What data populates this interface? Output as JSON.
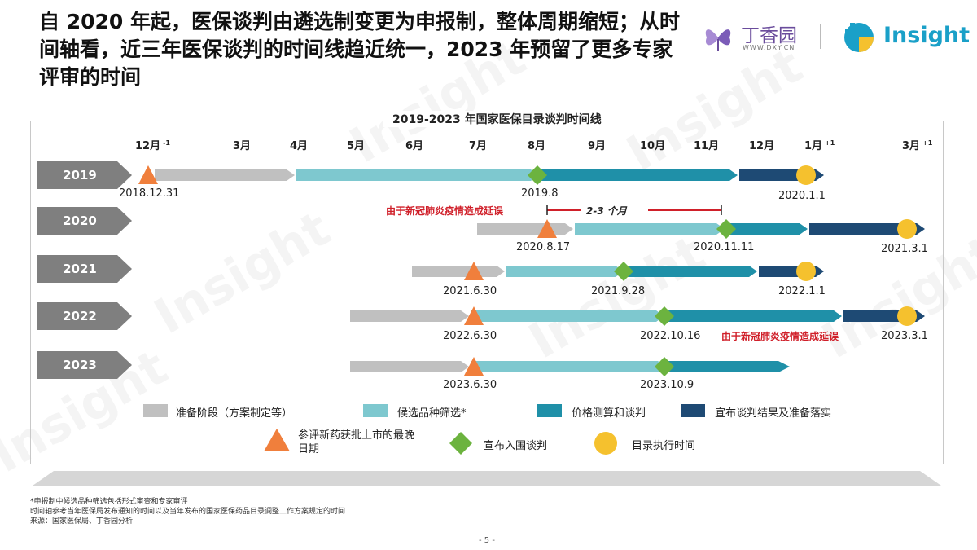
{
  "title": "自 2020 年起，医保谈判由遴选制变更为申报制，整体周期缩短；从时间轴看，近三年医保谈判的时间线趋近统一，2023 年预留了更多专家评审的时间",
  "logos": {
    "dxy_text": "丁香园",
    "dxy_url": "WWW.DXY.CN",
    "insight_text": "Insight"
  },
  "watermark": "Insight",
  "chart_title": "2019-2023 年国家医保目录谈判时间线",
  "months": [
    {
      "label": "12月",
      "sup": "-1"
    },
    {
      "label": "3月",
      "sup": ""
    },
    {
      "label": "4月",
      "sup": ""
    },
    {
      "label": "5月",
      "sup": ""
    },
    {
      "label": "6月",
      "sup": ""
    },
    {
      "label": "7月",
      "sup": ""
    },
    {
      "label": "8月",
      "sup": ""
    },
    {
      "label": "9月",
      "sup": ""
    },
    {
      "label": "10月",
      "sup": ""
    },
    {
      "label": "11月",
      "sup": ""
    },
    {
      "label": "12月",
      "sup": ""
    },
    {
      "label": "1月",
      "sup": "+1"
    },
    {
      "label": "3月",
      "sup": "+1"
    }
  ],
  "chart_data": {
    "type": "timeline",
    "stages": [
      "准备阶段（方案制定等）",
      "候选品种筛选*",
      "价格测算和谈判",
      "宣布谈判结果及准备落实"
    ],
    "stage_colors": [
      "#c0c0c0",
      "#7ec8cf",
      "#1f90a8",
      "#1e4a74"
    ],
    "rows": [
      {
        "year": "2019",
        "segments": [
          {
            "stage": 0,
            "from": "2018-12",
            "to": "2019-04"
          },
          {
            "stage": 1,
            "from": "2019-04",
            "to": "2019-08"
          },
          {
            "stage": 2,
            "from": "2019-08",
            "to": "2019-12"
          },
          {
            "stage": 3,
            "from": "2019-12",
            "to": "2020-01"
          }
        ],
        "approval": "2018.12.31",
        "announce": "2019.8",
        "execute": "2020.1.1"
      },
      {
        "year": "2020",
        "segments": [
          {
            "stage": 0,
            "from": "2020-07",
            "to": "2020-08"
          },
          {
            "stage": 1,
            "from": "2020-08",
            "to": "2020-11"
          },
          {
            "stage": 2,
            "from": "2020-11",
            "to": "2021-01"
          },
          {
            "stage": 3,
            "from": "2021-01",
            "to": "2021-03"
          }
        ],
        "approval": "2020.8.17",
        "announce": "2020.11.11",
        "execute": "2021.3.1",
        "delay_note": "由于新冠肺炎疫情造成延误",
        "gap_note": "2-3 个月"
      },
      {
        "year": "2021",
        "segments": [
          {
            "stage": 0,
            "from": "2021-06",
            "to": "2021-07"
          },
          {
            "stage": 1,
            "from": "2021-07",
            "to": "2021-09"
          },
          {
            "stage": 2,
            "from": "2021-09",
            "to": "2021-12"
          },
          {
            "stage": 3,
            "from": "2021-12",
            "to": "2022-01"
          }
        ],
        "approval": "2021.6.30",
        "announce": "2021.9.28",
        "execute": "2022.1.1"
      },
      {
        "year": "2022",
        "segments": [
          {
            "stage": 0,
            "from": "2022-05",
            "to": "2022-07"
          },
          {
            "stage": 1,
            "from": "2022-07",
            "to": "2022-10"
          },
          {
            "stage": 2,
            "from": "2022-10",
            "to": "2023-01"
          },
          {
            "stage": 3,
            "from": "2023-01",
            "to": "2023-03"
          }
        ],
        "approval": "2022.6.30",
        "announce": "2022.10.16",
        "execute": "2023.3.1",
        "delay_note": "由于新冠肺炎疫情造成延误"
      },
      {
        "year": "2023",
        "segments": [
          {
            "stage": 0,
            "from": "2023-05",
            "to": "2023-07"
          },
          {
            "stage": 1,
            "from": "2023-07",
            "to": "2023-10"
          },
          {
            "stage": 2,
            "from": "2023-10",
            "to": "2023-12"
          }
        ],
        "approval": "2023.6.30",
        "announce": "2023.10.9"
      }
    ]
  },
  "legend": {
    "stages": [
      "准备阶段（方案制定等）",
      "候选品种筛选*",
      "价格测算和谈判",
      "宣布谈判结果及准备落实"
    ],
    "markers": [
      {
        "label": "参评新药获批上市的最晚日期",
        "icon": "triangle-icon",
        "color": "#f07f3c"
      },
      {
        "label": "宣布入围谈判",
        "icon": "diamond-icon",
        "color": "#6cb33f"
      },
      {
        "label": "目录执行时间",
        "icon": "circle-icon",
        "color": "#f5c12e"
      }
    ]
  },
  "footnotes": [
    "*申报制中候选品种筛选包括形式审查和专家审评",
    "时间轴参考当年医保局发布通知的时间以及当年发布的国家医保药品目录调整工作方案规定的时间",
    "来源：国家医保局、丁香园分析"
  ],
  "page_number": "- 5 -"
}
